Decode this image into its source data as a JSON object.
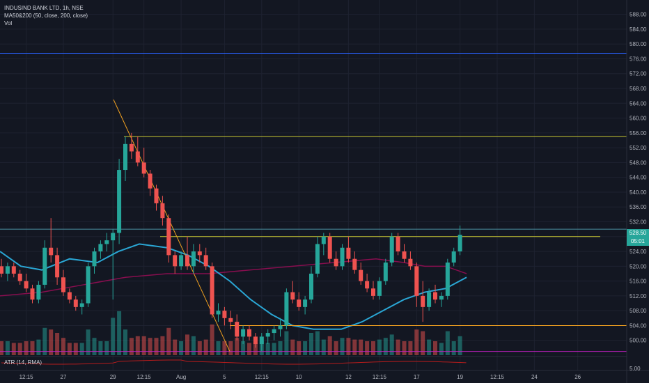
{
  "legend": {
    "symbol": "INDUSIND BANK LTD, 1h, NSE",
    "ma": "MA50&200 (50, close, 200, close)",
    "vol": "Vol",
    "atr": "ATR (14, RMA)"
  },
  "price_tags": {
    "last": "528.50",
    "countdown": "05:01"
  },
  "colors": {
    "background": "#131722",
    "up": "#26a69a",
    "down": "#ef5350",
    "ma50": "#2aa6d4",
    "ma200": "#880e4f",
    "hline": "#c8c832",
    "trendline": "#f0a020",
    "blue_line": "#2962ff",
    "magenta_line": "#c020c0",
    "atr": "#b71c1c"
  },
  "chart_data": {
    "type": "candlestick",
    "title": "INDUSIND BANK LTD, 1h, NSE",
    "ylim": [
      496,
      590
    ],
    "y_ticks": [
      "588.00",
      "584.00",
      "580.00",
      "576.00",
      "572.00",
      "568.00",
      "564.00",
      "560.00",
      "556.00",
      "552.00",
      "548.00",
      "544.00",
      "540.00",
      "536.00",
      "532.00",
      "528.00",
      "524.00",
      "520.00",
      "516.00",
      "512.00",
      "508.00",
      "504.00",
      "500.00"
    ],
    "atr_tick": "5.00",
    "x_ticks": [
      "12:15",
      "27",
      "29",
      "12:15",
      "Aug",
      "5",
      "12:15",
      "10",
      "12",
      "12:15",
      "17",
      "19",
      "12:15",
      "24",
      "26"
    ],
    "x_tick_bar_index": [
      4,
      10,
      18,
      23,
      29,
      36,
      42,
      48,
      56,
      61,
      67,
      74,
      80,
      86,
      93
    ],
    "candles": [
      [
        520,
        522,
        517,
        518
      ],
      [
        518,
        521,
        516,
        520
      ],
      [
        520,
        521,
        517,
        518
      ],
      [
        518,
        519,
        515,
        516
      ],
      [
        516,
        518,
        513,
        514
      ],
      [
        514,
        515,
        510,
        511
      ],
      [
        511,
        516,
        510,
        515
      ],
      [
        515,
        527,
        514,
        525
      ],
      [
        525,
        533,
        521,
        523
      ],
      [
        523,
        525,
        515,
        517
      ],
      [
        517,
        519,
        512,
        513
      ],
      [
        513,
        514,
        510,
        511
      ],
      [
        511,
        512,
        508,
        509
      ],
      [
        509,
        511,
        507,
        510
      ],
      [
        510,
        521,
        509,
        520
      ],
      [
        520,
        525,
        518,
        524
      ],
      [
        524,
        527,
        522,
        526
      ],
      [
        526,
        529,
        524,
        527
      ],
      [
        527,
        530,
        511,
        529
      ],
      [
        529,
        549,
        526,
        546
      ],
      [
        546,
        555,
        543,
        553
      ],
      [
        553,
        556,
        549,
        551
      ],
      [
        551,
        555,
        547,
        548
      ],
      [
        548,
        552,
        544,
        545
      ],
      [
        545,
        546,
        539,
        541
      ],
      [
        541,
        542,
        535,
        537
      ],
      [
        537,
        539,
        531,
        533
      ],
      [
        533,
        534,
        521,
        523
      ],
      [
        523,
        524,
        518,
        520
      ],
      [
        520,
        524,
        519,
        523
      ],
      [
        523,
        528,
        519,
        520
      ],
      [
        520,
        526,
        518,
        524
      ],
      [
        524,
        526,
        521,
        523
      ],
      [
        523,
        525,
        519,
        520
      ],
      [
        520,
        521,
        506,
        507
      ],
      [
        507,
        510,
        505,
        508
      ],
      [
        508,
        509,
        504,
        506
      ],
      [
        506,
        508,
        503,
        505
      ],
      [
        505,
        507,
        500,
        501
      ],
      [
        501,
        504,
        499,
        503
      ],
      [
        503,
        504,
        500,
        501
      ],
      [
        501,
        502,
        498,
        499
      ],
      [
        499,
        502,
        497,
        501
      ],
      [
        501,
        503,
        499,
        502
      ],
      [
        502,
        504,
        500,
        503
      ],
      [
        503,
        506,
        501,
        504
      ],
      [
        504,
        514,
        503,
        513
      ],
      [
        513,
        516,
        510,
        511
      ],
      [
        511,
        513,
        508,
        509
      ],
      [
        509,
        512,
        507,
        511
      ],
      [
        511,
        520,
        510,
        518
      ],
      [
        518,
        528,
        517,
        526
      ],
      [
        526,
        529,
        523,
        528
      ],
      [
        528,
        529,
        521,
        522
      ],
      [
        522,
        524,
        519,
        520
      ],
      [
        520,
        526,
        519,
        525
      ],
      [
        525,
        528,
        521,
        522
      ],
      [
        522,
        524,
        518,
        519
      ],
      [
        519,
        521,
        515,
        516
      ],
      [
        516,
        518,
        513,
        514
      ],
      [
        514,
        516,
        511,
        512
      ],
      [
        512,
        517,
        511,
        516
      ],
      [
        516,
        522,
        515,
        521
      ],
      [
        521,
        529,
        520,
        528
      ],
      [
        528,
        529,
        523,
        524
      ],
      [
        524,
        526,
        521,
        522
      ],
      [
        522,
        524,
        519,
        520
      ],
      [
        520,
        521,
        509,
        512
      ],
      [
        512,
        516,
        505,
        509
      ],
      [
        509,
        514,
        508,
        513
      ],
      [
        513,
        515,
        510,
        511
      ],
      [
        511,
        513,
        509,
        512
      ],
      [
        512,
        522,
        511,
        521
      ],
      [
        521,
        525,
        520,
        524
      ],
      [
        524,
        531,
        523,
        528.5
      ]
    ],
    "candle_x_start": 2,
    "candle_x_step": 8.9,
    "ma50": [
      [
        0,
        524
      ],
      [
        30,
        520
      ],
      [
        60,
        519
      ],
      [
        100,
        522
      ],
      [
        140,
        521
      ],
      [
        170,
        524
      ],
      [
        200,
        526
      ],
      [
        240,
        525
      ],
      [
        270,
        523
      ],
      [
        300,
        520
      ],
      [
        330,
        516
      ],
      [
        360,
        511
      ],
      [
        390,
        507
      ],
      [
        420,
        504
      ],
      [
        450,
        503
      ],
      [
        490,
        503
      ],
      [
        520,
        505
      ],
      [
        550,
        508
      ],
      [
        580,
        511
      ],
      [
        610,
        513
      ],
      [
        640,
        514
      ],
      [
        670,
        517
      ]
    ],
    "ma200": [
      [
        0,
        512
      ],
      [
        60,
        513
      ],
      [
        120,
        515
      ],
      [
        180,
        517
      ],
      [
        240,
        518
      ],
      [
        300,
        518
      ],
      [
        360,
        519
      ],
      [
        420,
        520
      ],
      [
        480,
        521
      ],
      [
        540,
        522
      ],
      [
        580,
        521
      ],
      [
        610,
        520
      ],
      [
        640,
        520
      ],
      [
        670,
        518
      ]
    ],
    "hlines": [
      {
        "price": 577.5,
        "x1": 0,
        "x2": 900,
        "color": "#2962ff"
      },
      {
        "price": 555.0,
        "x1": 178,
        "x2": 900,
        "color": "#c8c832"
      },
      {
        "price": 528.0,
        "x1": 230,
        "x2": 862,
        "color": "#c8c832"
      },
      {
        "price": 504.0,
        "x1": 330,
        "x2": 900,
        "color": "#f0a020"
      },
      {
        "price": 497.0,
        "x1": 0,
        "x2": 900,
        "color": "#c020c0"
      },
      {
        "price": 530.0,
        "x1": 0,
        "x2": 900,
        "color": "#4a90a0"
      }
    ],
    "trendline": {
      "p1": [
        163,
        565
      ],
      "p2": [
        330,
        497
      ]
    },
    "volume_scale_max": 100
  }
}
